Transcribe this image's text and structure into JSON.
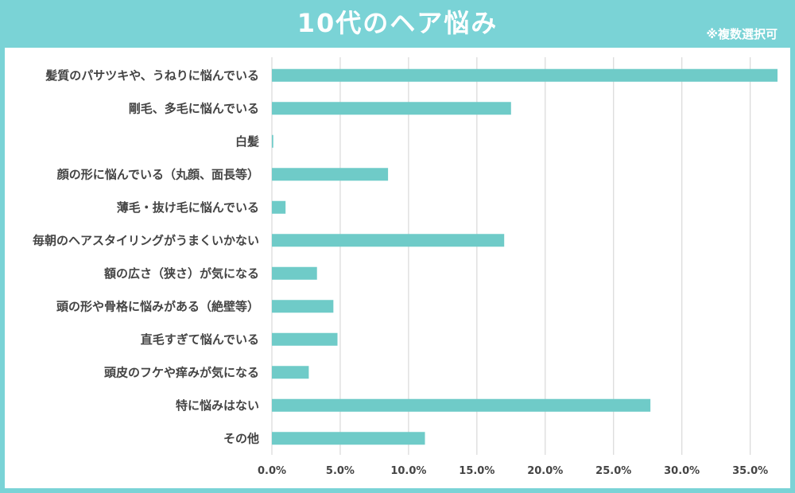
{
  "title": "10代のヘア悩み",
  "note": "※複数選択可",
  "colors": {
    "bar": "#6fcbc8",
    "header": "#7ad3d6",
    "grid": "#d9d9d9"
  },
  "chart_data": {
    "type": "bar",
    "orientation": "horizontal",
    "categories": [
      "髪質のパサツキや、うねりに悩んでいる",
      "剛毛、多毛に悩んでいる",
      "白髪",
      "顔の形に悩んでいる（丸顔、面長等）",
      "薄毛・抜け毛に悩んでいる",
      "毎朝のヘアスタイリングがうまくいかない",
      "額の広さ（狭さ）が気になる",
      "頭の形や骨格に悩みがある（絶壁等）",
      "直毛すぎて悩んでいる",
      "頭皮のフケや痒みが気になる",
      "特に悩みはない",
      "その他"
    ],
    "values": [
      37.0,
      17.5,
      0.1,
      8.5,
      1.0,
      17.0,
      3.3,
      4.5,
      4.8,
      2.7,
      27.7,
      11.2
    ],
    "xlim": [
      0,
      37
    ],
    "ticks": [
      0,
      5,
      10,
      15,
      20,
      25,
      30,
      35
    ],
    "tick_labels": [
      "0.0%",
      "5.0%",
      "10.0%",
      "15.0%",
      "20.0%",
      "25.0%",
      "30.0%",
      "35.0%"
    ],
    "grid": true
  }
}
